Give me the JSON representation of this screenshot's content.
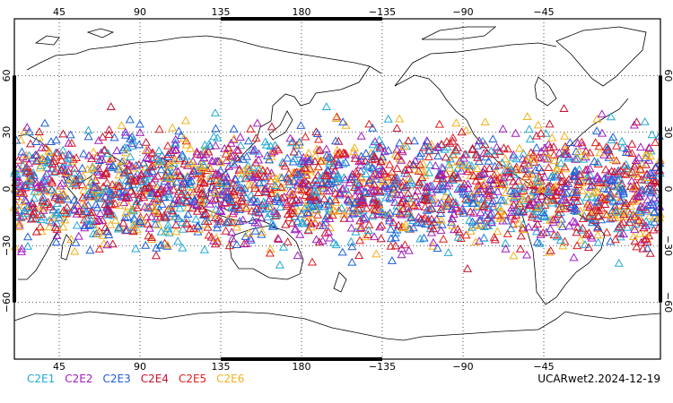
{
  "map": {
    "top_lon_ticks": [
      "45",
      "90",
      "135",
      "180",
      "−135",
      "−90",
      "−45"
    ],
    "bottom_lon_ticks": [
      "45",
      "90",
      "135",
      "180",
      "−135",
      "−90",
      "−45"
    ],
    "lon_values": [
      45,
      90,
      135,
      180,
      -135,
      -90,
      -45
    ],
    "left_lat_ticks": [
      "60",
      "30",
      "0",
      "−30",
      "−60"
    ],
    "right_lat_ticks": [
      "60",
      "30",
      "0",
      "−30",
      "−60"
    ],
    "lat_values": [
      60,
      30,
      0,
      -30,
      -60
    ],
    "projection": "cylindrical equidistant",
    "grid": "dotted",
    "marker": "open-triangle",
    "obs_lat_range": [
      -45,
      45
    ]
  },
  "legend": [
    {
      "label": "C2E1",
      "color": "#22a9d6"
    },
    {
      "label": "C2E2",
      "color": "#a21cc0"
    },
    {
      "label": "C2E3",
      "color": "#1f5fd8"
    },
    {
      "label": "C2E4",
      "color": "#c8102e"
    },
    {
      "label": "C2E5",
      "color": "#e01e1e"
    },
    {
      "label": "C2E6",
      "color": "#f2b21b"
    }
  ],
  "credit": "UCARwet2.2024-12-19"
}
